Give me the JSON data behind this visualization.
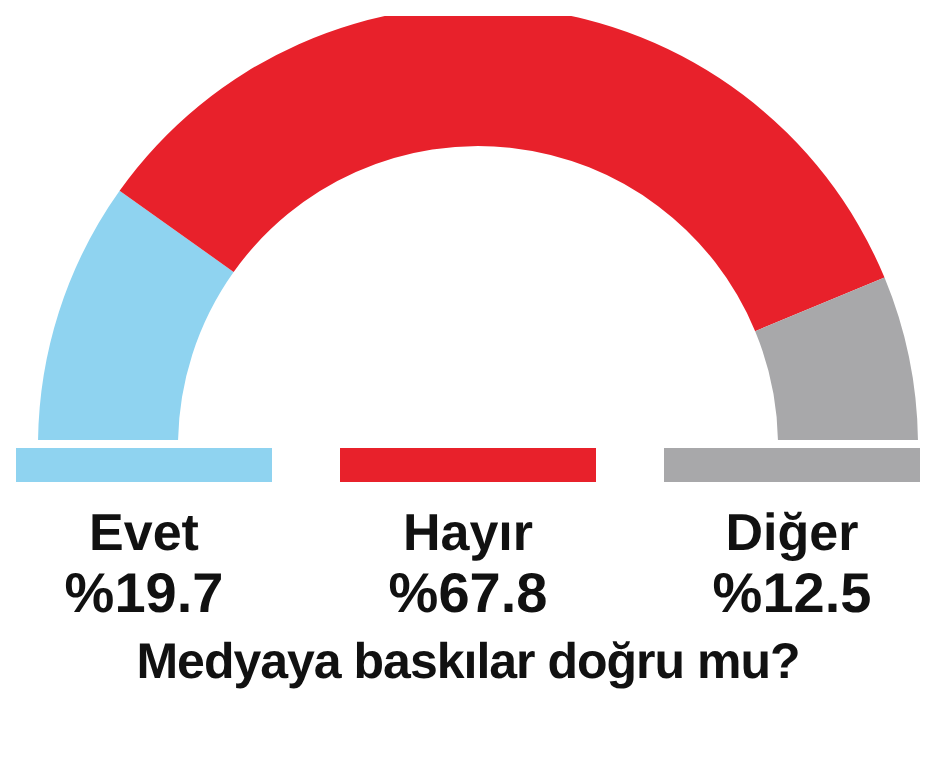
{
  "chart_data": {
    "type": "donut",
    "title": "Medyaya baskılar doğru mu?",
    "categories": [
      "Evet",
      "Hayır",
      "Diğer"
    ],
    "values": [
      19.7,
      67.8,
      12.5
    ],
    "colors": [
      "#8fd3f0",
      "#e8212b",
      "#a8a8aa"
    ],
    "value_labels": [
      "%19.7",
      "%67.8",
      "%12.5"
    ],
    "legend": "bottom"
  }
}
